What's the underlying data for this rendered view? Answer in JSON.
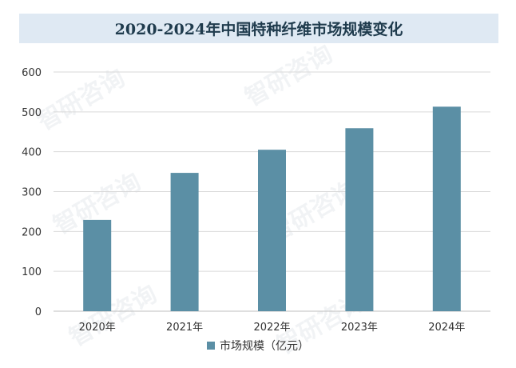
{
  "title": "2020-2024年中国特种纤维市场规模变化",
  "watermark_text": "智研咨询",
  "colors": {
    "bar": "#5b8fa5",
    "title_band": "#dfe9f3",
    "grid": "#d9d9d9"
  },
  "chart_data": {
    "type": "bar",
    "categories": [
      "2020年",
      "2021年",
      "2022年",
      "2023年",
      "2024年"
    ],
    "series": [
      {
        "name": "市场规模（亿元）",
        "values": [
          229,
          347,
          405,
          459,
          513
        ]
      }
    ],
    "ylim": [
      0,
      600
    ],
    "yticks": [
      "0",
      "100",
      "200",
      "300",
      "400",
      "500",
      "600"
    ],
    "grid": true,
    "legend_position": "bottom"
  }
}
